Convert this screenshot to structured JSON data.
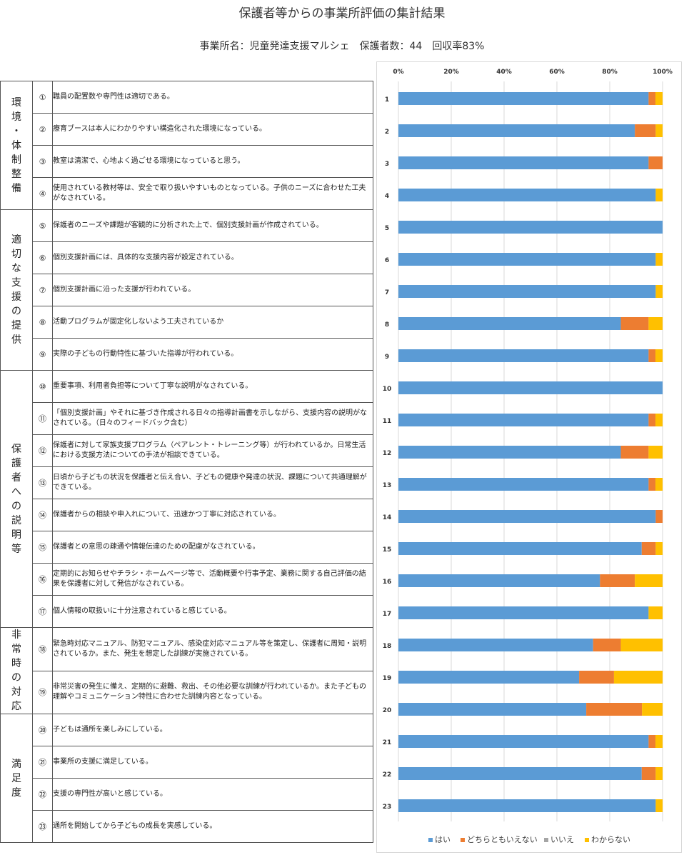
{
  "title": "保護者等からの事業所評価の集計結果",
  "subtitle": "事業所名：児童発達支援マルシェ　保護者数：44　回収率83%",
  "categories": [
    {
      "id": "c1",
      "label": "環境・体制整備",
      "rows": 4
    },
    {
      "id": "c2",
      "label": "適切な支援の提供",
      "rows": 5
    },
    {
      "id": "c3",
      "label": "保護者への説明等",
      "rows": 8
    },
    {
      "id": "c4",
      "label": "非常時の対応",
      "rows": 2
    },
    {
      "id": "c5",
      "label": "満足度",
      "rows": 4
    }
  ],
  "questions": [
    {
      "num": "①",
      "text": "職員の配置数や専門性は適切である。"
    },
    {
      "num": "②",
      "text": "療育ブースは本人にわかりやすい構造化された環境になっている。"
    },
    {
      "num": "③",
      "text": "教室は清潔で、心地よく過ごせる環境になっていると思う。"
    },
    {
      "num": "④",
      "text": "使用されている教材等は、安全で取り扱いやすいものとなっている。子供のニーズに合わせた工夫がなされている。"
    },
    {
      "num": "⑤",
      "text": "保護者のニーズや課題が客観的に分析された上で、個別支援計画が作成されている。"
    },
    {
      "num": "⑥",
      "text": "個別支援計画には、具体的な支援内容が設定されている。"
    },
    {
      "num": "⑦",
      "text": "個別支援計画に沿った支援が行われている。"
    },
    {
      "num": "⑧",
      "text": "活動プログラムが固定化しないよう工夫されているか"
    },
    {
      "num": "⑨",
      "text": "実際の子どもの行動特性に基づいた指導が行われている。"
    },
    {
      "num": "⑩",
      "text": "重要事項、利用者負担等について丁寧な説明がなされている。"
    },
    {
      "num": "⑪",
      "text": "「個別支援計画」やそれに基づき作成される日々の指導計画書を示しながら、支援内容の説明がなされている。（日々のフィードバック含む）"
    },
    {
      "num": "⑫",
      "text": "保護者に対して家族支援プログラム（ペアレント・トレーニング等）が行われているか。日常生活における支援方法についての手法が相談できている。"
    },
    {
      "num": "⑬",
      "text": "日頃から子どもの状況を保護者と伝え合い、子どもの健康や発達の状況、課題について共通理解ができている。"
    },
    {
      "num": "⑭",
      "text": "保護者からの相談や申入れについて、迅速かつ丁寧に対応されている。"
    },
    {
      "num": "⑮",
      "text": "保護者との意思の疎通や情報伝達のための配慮がなされている。"
    },
    {
      "num": "⑯",
      "text": "定期的にお知らせやチラシ・ホームページ等で、活動概要や行事予定、業務に関する自己評価の結果を保護者に対して発信がなされている。"
    },
    {
      "num": "⑰",
      "text": "個人情報の取扱いに十分注意されていると感じている。"
    },
    {
      "num": "⑱",
      "text": "緊急時対応マニュアル、防犯マニュアル、感染症対応マニュアル等を策定し、保護者に周知・説明されているか。また、発生を想定した訓練が実施されている。"
    },
    {
      "num": "⑲",
      "text": "非常災害の発生に備え、定期的に避難、救出、その他必要な訓練が行われているか。また子どもの理解やコミュニケーション特性に合わせた訓練内容となっている。"
    },
    {
      "num": "⑳",
      "text": "子どもは通所を楽しみにしている。"
    },
    {
      "num": "㉑",
      "text": "事業所の支援に満足している。"
    },
    {
      "num": "㉒",
      "text": "支援の専門性が高いと感じている。"
    },
    {
      "num": "㉓",
      "text": "通所を開始してから子どもの成長を実感している。"
    }
  ],
  "chart_data": {
    "type": "bar",
    "orientation": "horizontal",
    "stacked": true,
    "categories": [
      "1",
      "2",
      "3",
      "4",
      "5",
      "6",
      "7",
      "8",
      "9",
      "10",
      "11",
      "12",
      "13",
      "14",
      "15",
      "16",
      "17",
      "18",
      "19",
      "20",
      "21",
      "22",
      "23"
    ],
    "xlim": [
      0,
      100
    ],
    "xticks": [
      "0%",
      "20%",
      "40%",
      "60%",
      "80%",
      "100%"
    ],
    "xtick_position": "top",
    "grid": true,
    "legend": "bottom",
    "series": [
      {
        "name": "はい",
        "color": "#5B9BD5",
        "values": [
          94.7,
          89.5,
          94.7,
          97.4,
          100,
          97.4,
          97.4,
          84.2,
          94.7,
          100,
          94.7,
          84.2,
          94.7,
          97.4,
          92.1,
          76.3,
          94.7,
          73.7,
          68.4,
          71.1,
          94.7,
          92.1,
          97.4
        ]
      },
      {
        "name": "どちらともいえない",
        "color": "#ED7D31",
        "values": [
          2.6,
          7.9,
          5.3,
          0,
          0,
          0,
          0,
          10.5,
          2.6,
          0,
          2.6,
          10.5,
          2.6,
          2.6,
          5.3,
          13.2,
          0,
          10.5,
          13.2,
          21.1,
          2.6,
          5.3,
          0
        ]
      },
      {
        "name": "いいえ",
        "color": "#A5A5A5",
        "values": [
          0,
          0,
          0,
          0,
          0,
          0,
          0,
          0,
          0,
          0,
          0,
          0,
          0,
          0,
          0,
          0,
          0,
          0,
          0,
          0,
          0,
          0,
          0
        ]
      },
      {
        "name": "わからない",
        "color": "#FFC000",
        "values": [
          2.7,
          2.6,
          0,
          2.6,
          0,
          2.6,
          2.6,
          5.3,
          2.7,
          0,
          2.7,
          5.3,
          2.7,
          0,
          2.6,
          10.5,
          5.3,
          15.8,
          18.4,
          7.8,
          2.7,
          2.6,
          2.6
        ]
      }
    ]
  }
}
